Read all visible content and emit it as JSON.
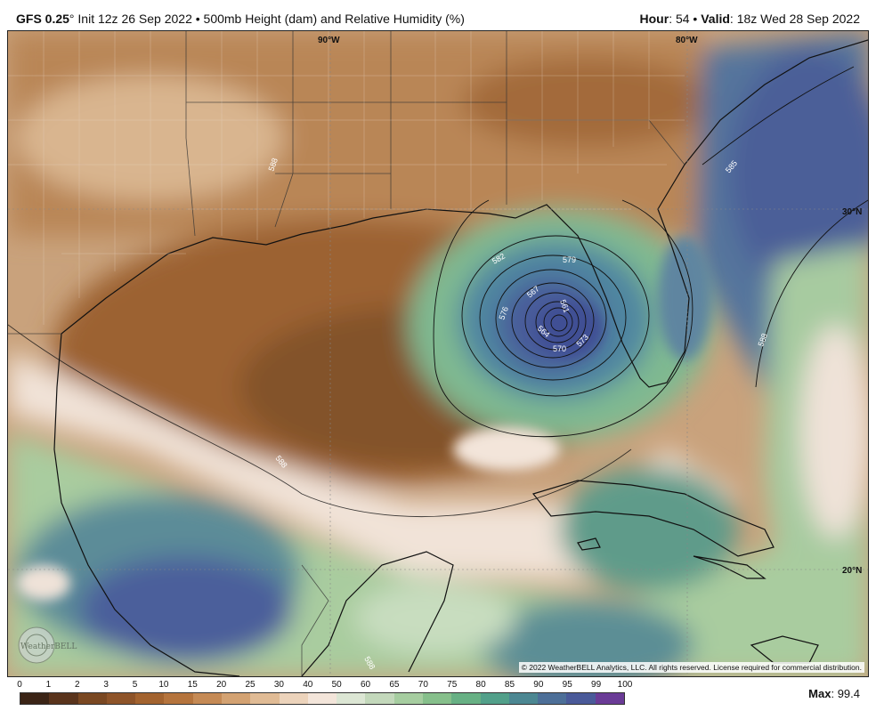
{
  "header": {
    "model": "GFS 0.25",
    "deg": "°",
    "init": " Init 12z 26 Sep 2022 • 500mb Height (dam) and Relative Humidity (%)",
    "hour_label": "Hour",
    "hour_value": ": 54 • ",
    "valid_label": "Valid",
    "valid_value": ": 18z Wed 28 Sep 2022"
  },
  "map": {
    "lat_labels": [
      "90°W",
      "80°W",
      "30°N",
      "20°N"
    ],
    "contour_labels": [
      "588",
      "588",
      "585",
      "588",
      "588",
      "582",
      "579",
      "576",
      "573",
      "570",
      "567",
      "564",
      "561"
    ],
    "logo_text": "WeatherBELL",
    "copyright": "© 2022 WeatherBELL Analytics, LLC. All rights reserved. License required for commercial distribution."
  },
  "legend": {
    "ticks": [
      "0",
      "1",
      "2",
      "3",
      "5",
      "10",
      "15",
      "20",
      "25",
      "30",
      "40",
      "50",
      "60",
      "65",
      "70",
      "75",
      "80",
      "85",
      "90",
      "95",
      "99",
      "100"
    ],
    "colors": [
      "#3b2416",
      "#5a341c",
      "#7a4822",
      "#8e5429",
      "#a3632f",
      "#b5743d",
      "#c58a55",
      "#d3a272",
      "#e0bb95",
      "#ecd3bb",
      "#f3e5da",
      "#dce6d4",
      "#c3d8bb",
      "#a6cda0",
      "#86bf8b",
      "#67b084",
      "#52a08a",
      "#4c8792",
      "#4d6f98",
      "#4a5a99",
      "#6a3b96"
    ],
    "max_label": "Max",
    "max_value": ": 99.4"
  }
}
